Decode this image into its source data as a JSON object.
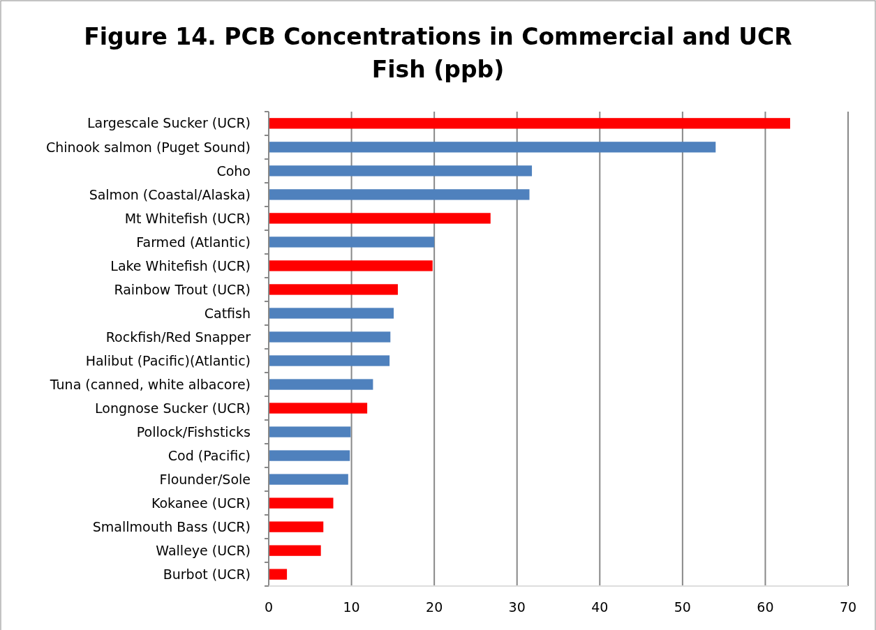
{
  "chart_data": {
    "type": "bar",
    "orientation": "horizontal",
    "title": "Figure 14.  PCB Concentrations in Commercial and UCR Fish (ppb)",
    "categories": [
      "Largescale Sucker (UCR)",
      "Chinook salmon (Puget Sound)",
      "Coho",
      "Salmon (Coastal/Alaska)",
      "Mt Whitefish (UCR)",
      "Farmed (Atlantic)",
      "Lake Whitefish (UCR)",
      "Rainbow Trout (UCR)",
      "Catfish",
      "Rockfish/Red Snapper",
      "Halibut (Pacific)(Atlantic)",
      "Tuna (canned, white albacore)",
      "Longnose Sucker (UCR)",
      "Pollock/Fishsticks",
      "Cod (Pacific)",
      "Flounder/Sole",
      "Kokanee (UCR)",
      "Smallmouth Bass (UCR)",
      "Walleye (UCR)",
      "Burbot (UCR)"
    ],
    "values": [
      63.0,
      54.0,
      31.8,
      31.5,
      26.8,
      20.0,
      19.8,
      15.6,
      15.1,
      14.7,
      14.6,
      12.6,
      11.9,
      9.9,
      9.8,
      9.6,
      7.8,
      6.6,
      6.3,
      2.2
    ],
    "colors": [
      "#ff0000",
      "#4f81bd",
      "#4f81bd",
      "#4f81bd",
      "#ff0000",
      "#4f81bd",
      "#ff0000",
      "#ff0000",
      "#4f81bd",
      "#4f81bd",
      "#4f81bd",
      "#4f81bd",
      "#ff0000",
      "#4f81bd",
      "#4f81bd",
      "#4f81bd",
      "#ff0000",
      "#ff0000",
      "#ff0000",
      "#ff0000"
    ],
    "xlim": [
      0,
      70
    ],
    "xticks": [
      0,
      10,
      20,
      30,
      40,
      50,
      60,
      70
    ],
    "grid": "x"
  }
}
